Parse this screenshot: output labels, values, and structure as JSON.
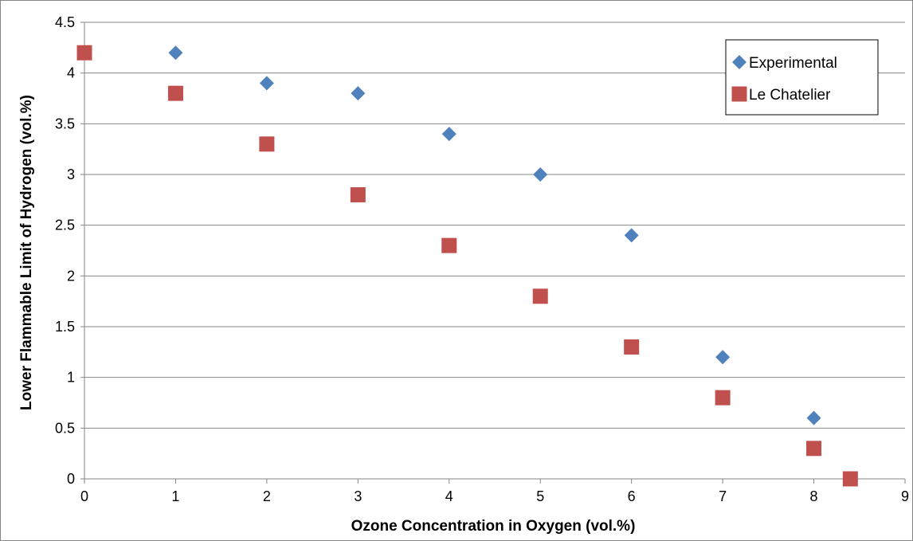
{
  "chart_data": {
    "type": "scatter",
    "title": "",
    "xlabel": "Ozone Concentration in Oxygen (vol.%)",
    "ylabel": "Lower Flammable Limit of Hydrogen (vol.%)",
    "xlim": [
      0,
      9
    ],
    "ylim": [
      0,
      4.5
    ],
    "x_ticks": [
      "0",
      "1",
      "2",
      "3",
      "4",
      "5",
      "6",
      "7",
      "8",
      "9"
    ],
    "y_ticks": [
      "0",
      "0.5",
      "1",
      "1.5",
      "2",
      "2.5",
      "3",
      "3.5",
      "4",
      "4.5"
    ],
    "x_tick_values": [
      0,
      1,
      2,
      3,
      4,
      5,
      6,
      7,
      8,
      9
    ],
    "y_tick_values": [
      0,
      0.5,
      1,
      1.5,
      2,
      2.5,
      3,
      3.5,
      4,
      4.5
    ],
    "grid": "horizontal",
    "legend_position": "top-right",
    "series": [
      {
        "name": "Experimental",
        "marker": "diamond",
        "color": "#4F81BD",
        "points": [
          [
            1,
            4.2
          ],
          [
            2,
            3.9
          ],
          [
            3,
            3.8
          ],
          [
            4,
            3.4
          ],
          [
            5,
            3.0
          ],
          [
            6,
            2.4
          ],
          [
            7,
            1.2
          ],
          [
            8,
            0.6
          ]
        ]
      },
      {
        "name": "Le Chatelier",
        "marker": "square",
        "color": "#C0504D",
        "points": [
          [
            0,
            4.2
          ],
          [
            1,
            3.8
          ],
          [
            2,
            3.3
          ],
          [
            3,
            2.8
          ],
          [
            4,
            2.3
          ],
          [
            5,
            1.8
          ],
          [
            6,
            1.3
          ],
          [
            7,
            0.8
          ],
          [
            8,
            0.3
          ],
          [
            8.4,
            0
          ]
        ]
      }
    ]
  }
}
